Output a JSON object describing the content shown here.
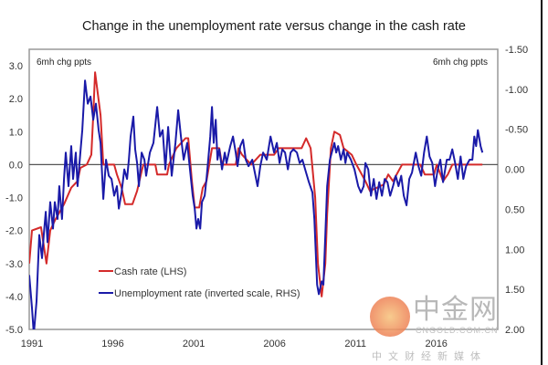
{
  "chart_data": {
    "type": "line",
    "title": "Change in the unemployment rate versus change in the cash rate",
    "left_axis": {
      "label": "6mh chg ppts",
      "range": [
        -5.0,
        3.5
      ],
      "ticks": [
        "3.0",
        "2.0",
        "1.0",
        "0.0",
        "-1.0",
        "-2.0",
        "-3.0",
        "-4.0",
        "-5.0"
      ],
      "tick_values": [
        3,
        2,
        1,
        0,
        -1,
        -2,
        -3,
        -4,
        -5
      ]
    },
    "right_axis": {
      "label": "6mh chg ppts",
      "inverted": true,
      "range": [
        -1.5,
        2.0
      ],
      "ticks": [
        "-1.50",
        "-1.00",
        "-0.50",
        "0.00",
        "0.50",
        "1.00",
        "1.50",
        "2.00"
      ],
      "tick_values": [
        -1.5,
        -1,
        -0.5,
        0,
        0.5,
        1,
        1.5,
        2
      ]
    },
    "x_axis": {
      "range": [
        1990.83,
        2019.8
      ],
      "ticks": [
        "1991",
        "1996",
        "2001",
        "2006",
        "2011",
        "2016"
      ],
      "tick_values": [
        1991,
        1996,
        2001,
        2006,
        2011,
        2016
      ]
    },
    "grid": false,
    "zero_line": true,
    "legend_placement": "lower-left",
    "series": [
      {
        "name": "Cash rate (LHS)",
        "axis": "left",
        "color": "#d42a2a",
        "points": [
          [
            1990.83,
            -3.0
          ],
          [
            1991.0,
            -2.0
          ],
          [
            1991.56,
            -1.9
          ],
          [
            1991.9,
            -3.0
          ],
          [
            1992.13,
            -2.0
          ],
          [
            1992.41,
            -1.7
          ],
          [
            1992.98,
            -1.2
          ],
          [
            1993.43,
            -0.7
          ],
          [
            1993.82,
            -0.5
          ],
          [
            1993.99,
            -0.1
          ],
          [
            1994.39,
            0
          ],
          [
            1994.67,
            0.3
          ],
          [
            1994.79,
            1.5
          ],
          [
            1994.9,
            2.8
          ],
          [
            1995.24,
            1.5
          ],
          [
            1995.41,
            0
          ],
          [
            1996.08,
            0
          ],
          [
            1996.25,
            -0.3
          ],
          [
            1996.54,
            -0.7
          ],
          [
            1996.76,
            -1.2
          ],
          [
            1997.21,
            -1.2
          ],
          [
            1997.5,
            -0.8
          ],
          [
            1997.78,
            -0.2
          ],
          [
            1997.89,
            0
          ],
          [
            1998.63,
            0
          ],
          [
            1998.74,
            -0.3
          ],
          [
            1999.36,
            -0.3
          ],
          [
            1999.47,
            0
          ],
          [
            1999.93,
            0.5
          ],
          [
            2000.49,
            0.8
          ],
          [
            2000.66,
            0.8
          ],
          [
            2000.89,
            -0.5
          ],
          [
            2001.06,
            -1.3
          ],
          [
            2001.34,
            -1.3
          ],
          [
            2001.56,
            -0.7
          ],
          [
            2001.79,
            -0.5
          ],
          [
            2002.13,
            0.5
          ],
          [
            2002.58,
            0.5
          ],
          [
            2002.75,
            0
          ],
          [
            2003.6,
            0
          ],
          [
            2003.77,
            0.5
          ],
          [
            2003.99,
            0.3
          ],
          [
            2004.56,
            0
          ],
          [
            2005.12,
            0.3
          ],
          [
            2005.97,
            0.3
          ],
          [
            2006.25,
            0.5
          ],
          [
            2007.67,
            0.5
          ],
          [
            2007.95,
            0.8
          ],
          [
            2008.23,
            0.5
          ],
          [
            2008.51,
            -1.0
          ],
          [
            2008.68,
            -3.0
          ],
          [
            2008.91,
            -4.0
          ],
          [
            2009.14,
            -3.0
          ],
          [
            2009.25,
            -1.5
          ],
          [
            2009.48,
            0.5
          ],
          [
            2009.7,
            1.0
          ],
          [
            2010.04,
            0.9
          ],
          [
            2010.27,
            0.5
          ],
          [
            2010.77,
            0.3
          ],
          [
            2011.06,
            0
          ],
          [
            2011.62,
            -0.5
          ],
          [
            2011.9,
            -0.8
          ],
          [
            2012.75,
            -0.6
          ],
          [
            2013.03,
            -0.3
          ],
          [
            2013.32,
            -0.5
          ],
          [
            2013.88,
            0
          ],
          [
            2015.01,
            0
          ],
          [
            2015.29,
            -0.3
          ],
          [
            2015.86,
            -0.3
          ],
          [
            2016.03,
            0
          ],
          [
            2016.42,
            -0.5
          ],
          [
            2016.71,
            -0.3
          ],
          [
            2016.99,
            0
          ],
          [
            2018.85,
            0
          ]
        ]
      },
      {
        "name": "Unemployment rate (inverted scale, RHS)",
        "axis": "right",
        "color": "#1a1aa8",
        "points": [
          [
            1990.83,
            1.32
          ],
          [
            1991.0,
            1.73
          ],
          [
            1991.11,
            2.06
          ],
          [
            1991.28,
            1.65
          ],
          [
            1991.45,
            0.82
          ],
          [
            1991.62,
            1.11
          ],
          [
            1991.73,
            0.82
          ],
          [
            1991.85,
            0.53
          ],
          [
            1991.96,
            0.91
          ],
          [
            1992.13,
            0.41
          ],
          [
            1992.3,
            0.74
          ],
          [
            1992.41,
            0.41
          ],
          [
            1992.58,
            0.62
          ],
          [
            1992.69,
            0.21
          ],
          [
            1992.86,
            0.62
          ],
          [
            1992.98,
            0.12
          ],
          [
            1993.09,
            -0.21
          ],
          [
            1993.26,
            0.21
          ],
          [
            1993.43,
            -0.29
          ],
          [
            1993.54,
            0.12
          ],
          [
            1993.71,
            -0.21
          ],
          [
            1993.82,
            0.21
          ],
          [
            1993.99,
            -0.21
          ],
          [
            1994.11,
            -0.49
          ],
          [
            1994.28,
            -1.11
          ],
          [
            1994.45,
            -0.82
          ],
          [
            1994.62,
            -0.91
          ],
          [
            1994.79,
            -0.62
          ],
          [
            1994.95,
            -0.82
          ],
          [
            1995.12,
            -0.49
          ],
          [
            1995.24,
            -0.33
          ],
          [
            1995.41,
            0.37
          ],
          [
            1995.58,
            -0.12
          ],
          [
            1995.75,
            0.08
          ],
          [
            1995.92,
            0.12
          ],
          [
            1996.08,
            0.33
          ],
          [
            1996.25,
            0.21
          ],
          [
            1996.37,
            0.49
          ],
          [
            1996.54,
            0.29
          ],
          [
            1996.71,
            0
          ],
          [
            1996.88,
            0.12
          ],
          [
            1996.99,
            -0.12
          ],
          [
            1997.1,
            -0.41
          ],
          [
            1997.27,
            -0.66
          ],
          [
            1997.38,
            -0.25
          ],
          [
            1997.5,
            -0.08
          ],
          [
            1997.61,
            0.21
          ],
          [
            1997.78,
            -0.21
          ],
          [
            1997.95,
            -0.12
          ],
          [
            1998.06,
            0.08
          ],
          [
            1998.29,
            -0.21
          ],
          [
            1998.51,
            -0.33
          ],
          [
            1998.74,
            -0.78
          ],
          [
            1998.91,
            -0.41
          ],
          [
            1999.08,
            -0.49
          ],
          [
            1999.25,
            0
          ],
          [
            1999.42,
            -0.53
          ],
          [
            1999.64,
            0.08
          ],
          [
            1999.87,
            -0.33
          ],
          [
            2000.04,
            -0.74
          ],
          [
            2000.21,
            -0.41
          ],
          [
            2000.38,
            -0.12
          ],
          [
            2000.6,
            -0.33
          ],
          [
            2000.77,
            0
          ],
          [
            2000.94,
            0.33
          ],
          [
            2001.06,
            0.49
          ],
          [
            2001.17,
            0.74
          ],
          [
            2001.28,
            0.62
          ],
          [
            2001.4,
            0.74
          ],
          [
            2001.51,
            0.41
          ],
          [
            2001.68,
            0.33
          ],
          [
            2001.79,
            0.12
          ],
          [
            2001.9,
            -0.12
          ],
          [
            2002.02,
            -0.41
          ],
          [
            2002.13,
            -0.78
          ],
          [
            2002.24,
            -0.33
          ],
          [
            2002.36,
            -0.62
          ],
          [
            2002.47,
            -0.12
          ],
          [
            2002.58,
            -0.25
          ],
          [
            2002.75,
            0
          ],
          [
            2002.92,
            -0.21
          ],
          [
            2003.03,
            -0.08
          ],
          [
            2003.26,
            -0.29
          ],
          [
            2003.43,
            -0.41
          ],
          [
            2003.6,
            -0.21
          ],
          [
            2003.71,
            -0.04
          ],
          [
            2003.88,
            -0.29
          ],
          [
            2004.05,
            -0.37
          ],
          [
            2004.22,
            -0.12
          ],
          [
            2004.39,
            -0.04
          ],
          [
            2004.62,
            -0.12
          ],
          [
            2004.95,
            0.21
          ],
          [
            2005.12,
            -0.04
          ],
          [
            2005.29,
            -0.21
          ],
          [
            2005.52,
            -0.12
          ],
          [
            2005.75,
            -0.41
          ],
          [
            2005.97,
            -0.21
          ],
          [
            2006.14,
            -0.33
          ],
          [
            2006.31,
            -0.08
          ],
          [
            2006.48,
            -0.25
          ],
          [
            2006.65,
            -0.21
          ],
          [
            2006.82,
            0
          ],
          [
            2006.99,
            -0.21
          ],
          [
            2007.16,
            -0.25
          ],
          [
            2007.38,
            -0.21
          ],
          [
            2007.55,
            -0.08
          ],
          [
            2007.72,
            -0.12
          ],
          [
            2007.89,
            0
          ],
          [
            2008.12,
            0.16
          ],
          [
            2008.34,
            0.29
          ],
          [
            2008.46,
            0.62
          ],
          [
            2008.63,
            1.44
          ],
          [
            2008.74,
            1.56
          ],
          [
            2008.91,
            1.4
          ],
          [
            2009.02,
            1.44
          ],
          [
            2009.14,
            0.82
          ],
          [
            2009.25,
            0.21
          ],
          [
            2009.42,
            -0.12
          ],
          [
            2009.59,
            -0.25
          ],
          [
            2009.7,
            -0.33
          ],
          [
            2009.81,
            -0.21
          ],
          [
            2009.93,
            -0.29
          ],
          [
            2010.1,
            -0.12
          ],
          [
            2010.27,
            -0.25
          ],
          [
            2010.38,
            -0.08
          ],
          [
            2010.49,
            -0.21
          ],
          [
            2010.72,
            -0.12
          ],
          [
            2010.94,
            0
          ],
          [
            2011.17,
            0.21
          ],
          [
            2011.34,
            0.29
          ],
          [
            2011.51,
            0.21
          ],
          [
            2011.62,
            -0.08
          ],
          [
            2011.79,
            0
          ],
          [
            2011.96,
            0.33
          ],
          [
            2012.13,
            0.12
          ],
          [
            2012.3,
            0.37
          ],
          [
            2012.47,
            0.16
          ],
          [
            2012.64,
            0.33
          ],
          [
            2012.81,
            0.12
          ],
          [
            2012.98,
            0.16
          ],
          [
            2013.15,
            0.33
          ],
          [
            2013.32,
            0.21
          ],
          [
            2013.49,
            0.08
          ],
          [
            2013.66,
            0.21
          ],
          [
            2013.83,
            0.08
          ],
          [
            2013.99,
            0.33
          ],
          [
            2014.16,
            0.45
          ],
          [
            2014.33,
            0.12
          ],
          [
            2014.5,
            0.04
          ],
          [
            2014.73,
            -0.21
          ],
          [
            2014.9,
            -0.04
          ],
          [
            2015.07,
            0.08
          ],
          [
            2015.24,
            -0.21
          ],
          [
            2015.41,
            -0.41
          ],
          [
            2015.58,
            -0.16
          ],
          [
            2015.75,
            -0.08
          ],
          [
            2015.92,
            0.21
          ],
          [
            2016.09,
            0
          ],
          [
            2016.25,
            -0.12
          ],
          [
            2016.42,
            0.16
          ],
          [
            2016.65,
            -0.12
          ],
          [
            2016.82,
            -0.12
          ],
          [
            2016.99,
            -0.25
          ],
          [
            2017.16,
            -0.08
          ],
          [
            2017.33,
            0.12
          ],
          [
            2017.5,
            -0.16
          ],
          [
            2017.67,
            0.12
          ],
          [
            2017.84,
            -0.04
          ],
          [
            2018.06,
            -0.12
          ],
          [
            2018.23,
            -0.12
          ],
          [
            2018.35,
            -0.41
          ],
          [
            2018.46,
            -0.29
          ],
          [
            2018.57,
            -0.49
          ],
          [
            2018.74,
            -0.29
          ],
          [
            2018.85,
            -0.21
          ]
        ]
      }
    ]
  },
  "watermark": {
    "brand": "中金网",
    "url": "CNGOLD.COM.CN",
    "tagline": "中文财经新媒体"
  }
}
